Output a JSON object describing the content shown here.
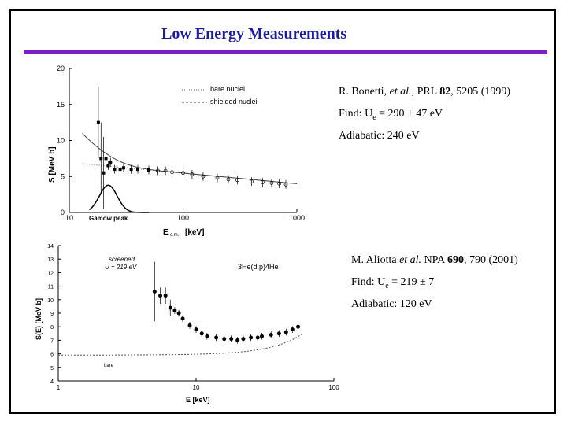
{
  "slide": {
    "title": "Low Energy Measurements"
  },
  "ref1": {
    "prefix": "R. Bonetti, ",
    "italic": "et al.",
    "mid": ", PRL ",
    "volume": "82",
    "rest": ", 5205 (1999)",
    "find_label": "Find:  U",
    "find_sub": "e",
    "find_value": " = 290 ± 47 eV",
    "adiabatic": "Adiabatic:  240 eV"
  },
  "ref2": {
    "prefix": "M. Aliotta ",
    "italic": "et al.",
    "mid": " NPA ",
    "volume": "690",
    "rest": ", 790 (2001)",
    "find_label": "Find:  U",
    "find_sub": "e",
    "find_value": " = 219 ± 7",
    "adiabatic": "Adiabatic:  120 eV"
  },
  "chart_data": [
    {
      "type": "scatter",
      "xscale": "log",
      "xlim": [
        10,
        1000
      ],
      "ylim": [
        0,
        20
      ],
      "xlabel": "E",
      "xlabel_sub": "c.m.",
      "xlabel_unit": "[keV]",
      "ylabel": "S [MeV b]",
      "yticks": [
        0,
        5,
        10,
        15,
        20
      ],
      "xticks": [
        10,
        100,
        1000
      ],
      "legend": [
        "bare  nuclei",
        "shielded  nuclei"
      ],
      "annotations": [
        "Gamow  peak"
      ],
      "series": [
        {
          "name": "data",
          "x": [
            18,
            19,
            20,
            21,
            22,
            23,
            25,
            28,
            30,
            35,
            40,
            50,
            60,
            70,
            80,
            100,
            120,
            150,
            200,
            250,
            300,
            400,
            500,
            600,
            700,
            800
          ],
          "y": [
            12.5,
            7.5,
            5.5,
            7.5,
            6.5,
            7.0,
            6.0,
            6.0,
            6.2,
            6.0,
            6.0,
            5.9,
            5.8,
            5.8,
            5.6,
            5.5,
            5.3,
            5.0,
            4.8,
            4.6,
            4.5,
            4.3,
            4.2,
            4.1,
            4.0,
            3.9
          ]
        },
        {
          "name": "curves",
          "note": "bare nuclei / shielded nuclei fits"
        }
      ]
    },
    {
      "type": "scatter",
      "xscale": "log",
      "xlim": [
        1,
        100
      ],
      "ylim": [
        4,
        14
      ],
      "xlabel": "E [keV]",
      "ylabel": "S(E) [MeV b]",
      "yticks": [
        4,
        5,
        6,
        7,
        8,
        9,
        10,
        11,
        12,
        13,
        14
      ],
      "xticks": [
        1,
        10,
        100
      ],
      "annotations": [
        "screened",
        "U = 219 eV",
        "bare",
        "3He(d,p)4He"
      ],
      "series": [
        {
          "name": "data",
          "x": [
            5,
            5.5,
            6,
            6.5,
            7,
            7.5,
            8,
            9,
            10,
            11,
            12,
            14,
            16,
            18,
            20,
            22,
            25,
            28,
            30,
            35,
            40,
            45,
            50,
            55
          ],
          "y": [
            10.6,
            10.3,
            10.3,
            9.4,
            9.2,
            9.0,
            8.6,
            8.1,
            7.8,
            7.5,
            7.3,
            7.2,
            7.1,
            7.1,
            7.0,
            7.1,
            7.2,
            7.2,
            7.3,
            7.4,
            7.5,
            7.6,
            7.8,
            8.0
          ]
        }
      ]
    }
  ]
}
